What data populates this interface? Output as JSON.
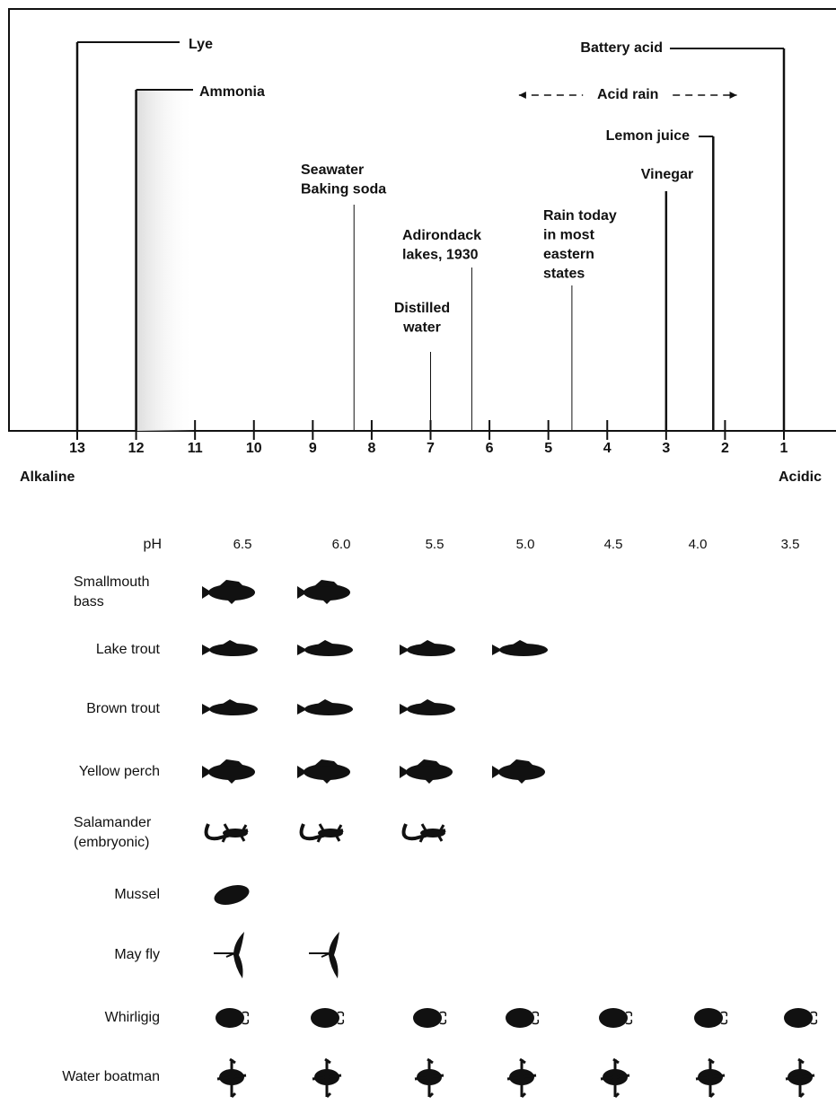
{
  "scale": {
    "ticks": [
      13,
      12,
      11,
      10,
      9,
      8,
      7,
      6,
      5,
      4,
      3,
      2,
      1
    ],
    "left_label": "Alkaline",
    "right_label": "Acidic"
  },
  "substances": [
    {
      "lines": [
        "Lye"
      ],
      "ph": 13
    },
    {
      "lines": [
        "Ammonia"
      ],
      "ph": 12
    },
    {
      "lines": [
        "Seawater",
        "Baking soda"
      ],
      "ph": 8.3
    },
    {
      "lines": [
        "Distilled",
        "water"
      ],
      "ph": 7
    },
    {
      "lines": [
        "Adirondack",
        "lakes, 1930"
      ],
      "ph": 6.3
    },
    {
      "lines": [
        "Rain today",
        "in most",
        "eastern",
        "states"
      ],
      "ph": 4.6
    },
    {
      "lines": [
        "Vinegar"
      ],
      "ph": 3
    },
    {
      "lines": [
        "Lemon juice"
      ],
      "ph": 2.2
    },
    {
      "lines": [
        "Battery acid"
      ],
      "ph": 1
    }
  ],
  "acid_rain": {
    "label": "Acid rain",
    "from": 5.5,
    "to": 1.8
  },
  "organisms": {
    "header": "pH",
    "columns": [
      6.5,
      {
        "value": 6,
        "label": "6.0"
      },
      5.5,
      {
        "value": 5,
        "label": "5.0"
      },
      4.5,
      {
        "value": 4,
        "label": "4.0"
      },
      3.5
    ],
    "rows": [
      {
        "lines": [
          "Smallmouth",
          "bass"
        ],
        "min_ph": 6,
        "icon": "bass"
      },
      {
        "lines": [
          "Lake trout"
        ],
        "min_ph": 5,
        "icon": "fish"
      },
      {
        "lines": [
          "Brown trout"
        ],
        "min_ph": 5.5,
        "icon": "fish"
      },
      {
        "lines": [
          "Yellow perch"
        ],
        "min_ph": 5,
        "icon": "bass"
      },
      {
        "lines": [
          "Salamander",
          "(embryonic)"
        ],
        "min_ph": 5.5,
        "icon": "salamander"
      },
      {
        "lines": [
          "Mussel"
        ],
        "min_ph": 6.5,
        "icon": "mussel"
      },
      {
        "lines": [
          "May fly"
        ],
        "min_ph": 6,
        "icon": "mayfly"
      },
      {
        "lines": [
          "Whirligig"
        ],
        "min_ph": 3.5,
        "icon": "beetle"
      },
      {
        "lines": [
          "Water boatman"
        ],
        "min_ph": 3.5,
        "icon": "boatman"
      }
    ]
  }
}
